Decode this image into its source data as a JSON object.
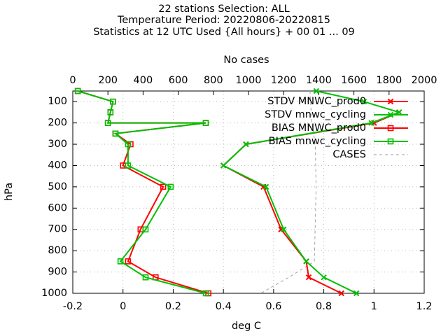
{
  "chart_data": {
    "type": "line",
    "title_lines": [
      "22 stations Selection: ALL",
      "Temperature  Period: 20220806-20220815",
      "Statistics at 12 UTC  Used {All hours} + 00 01 ... 09"
    ],
    "xlabel": "deg C",
    "ylabel": "hPa",
    "x2label": "No cases",
    "xlim": [
      -0.2,
      1.2
    ],
    "ylim": [
      1000,
      50
    ],
    "x2lim": [
      0,
      2000
    ],
    "y_reversed": true,
    "xticks": [
      -0.2,
      0,
      0.2,
      0.4,
      0.6,
      0.8,
      1,
      1.2
    ],
    "xtick_labels": [
      "-0.2",
      "0",
      "0.2",
      "0.4",
      "0.6",
      "0.8",
      "1",
      "1.2"
    ],
    "yticks": [
      100,
      200,
      300,
      400,
      500,
      600,
      700,
      800,
      900,
      1000
    ],
    "ytick_labels": [
      "100",
      "200",
      "300",
      "400",
      "500",
      "600",
      "700",
      "800",
      "900",
      "1000"
    ],
    "x2ticks": [
      0,
      200,
      400,
      600,
      800,
      1000,
      1200,
      1400,
      1600,
      1800,
      2000
    ],
    "x2tick_labels": [
      "0",
      "200",
      "400",
      "600",
      "800",
      "1000",
      "1200",
      "1400",
      "1600",
      "1800",
      "2000"
    ],
    "grid": true,
    "legend_position": "top-right",
    "series": [
      {
        "name": "STDV MNWC_prod0",
        "color": "#ff0000",
        "marker": "x",
        "dashed": false,
        "axis": "x",
        "x": [
          1.1,
          1.0,
          0.49,
          0.4,
          0.56,
          0.63,
          0.73,
          0.74,
          0.87
        ],
        "y": [
          150,
          200,
          300,
          400,
          500,
          700,
          850,
          925,
          1000
        ]
      },
      {
        "name": "STDV mnwc_cycling",
        "color": "#00c000",
        "marker": "x",
        "dashed": false,
        "axis": "x",
        "x": [
          0.77,
          0.96,
          1.1,
          0.99,
          0.49,
          0.4,
          0.57,
          0.64,
          0.73,
          0.8,
          0.93
        ],
        "y": [
          50,
          100,
          150,
          200,
          300,
          400,
          500,
          700,
          850,
          925,
          1000
        ]
      },
      {
        "name": "BIAS MNWC_prod0",
        "color": "#ff0000",
        "marker": "square",
        "dashed": false,
        "axis": "x",
        "x": [
          -0.18,
          -0.04,
          -0.05,
          -0.06,
          0.33,
          -0.03,
          0.03,
          0.0,
          0.16,
          0.07,
          0.02,
          0.13,
          0.34
        ],
        "y": [
          50,
          100,
          150,
          200,
          200,
          250,
          300,
          400,
          500,
          700,
          850,
          925,
          1000
        ]
      },
      {
        "name": "BIAS mnwc_cycling",
        "color": "#00c000",
        "marker": "square",
        "dashed": false,
        "axis": "x",
        "x": [
          -0.18,
          -0.04,
          -0.05,
          -0.06,
          0.33,
          -0.03,
          0.02,
          0.02,
          0.19,
          0.09,
          -0.01,
          0.09,
          0.33
        ],
        "y": [
          50,
          100,
          150,
          200,
          200,
          250,
          300,
          400,
          500,
          700,
          850,
          925,
          1000
        ]
      },
      {
        "name": "CASES",
        "color": "#a0a0a0",
        "marker": "none",
        "dashed": true,
        "axis": "x2",
        "x": [
          1350,
          1360,
          1370,
          1380,
          1385,
          1375,
          1230,
          1070
        ],
        "y": [
          50,
          200,
          250,
          300,
          500,
          850,
          925,
          1000
        ]
      }
    ]
  }
}
